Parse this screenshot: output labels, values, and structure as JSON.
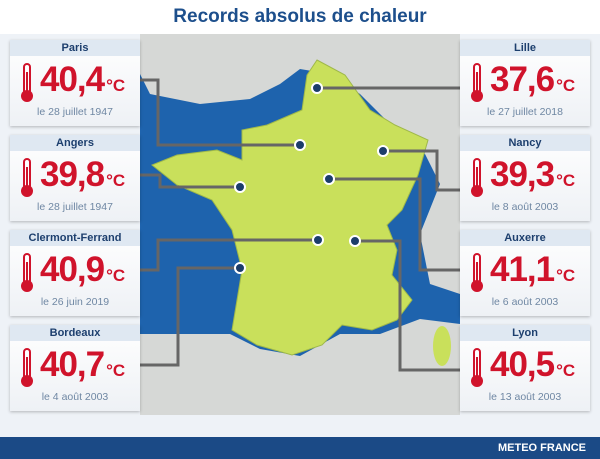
{
  "title": "Records absolus de chaleur",
  "unit": "°C",
  "records": [
    {
      "city": "Paris",
      "value": "40,4",
      "date": "le 28 juillet 1947"
    },
    {
      "city": "Angers",
      "value": "39,8",
      "date": "le 28 juillet 1947"
    },
    {
      "city": "Clermont-Ferrand",
      "value": "40,9",
      "date": "le 26 juin 2019"
    },
    {
      "city": "Bordeaux",
      "value": "40,7",
      "date": "le 4 août 2003"
    },
    {
      "city": "Lille",
      "value": "37,6",
      "date": "le 27 juillet 2018"
    },
    {
      "city": "Nancy",
      "value": "39,3",
      "date": "le 8 août 2003"
    },
    {
      "city": "Auxerre",
      "value": "41,1",
      "date": "le 6 août 2003"
    },
    {
      "city": "Lyon",
      "value": "40,5",
      "date": "le 13 août 2003"
    }
  ],
  "footer": "METEO FRANCE"
}
